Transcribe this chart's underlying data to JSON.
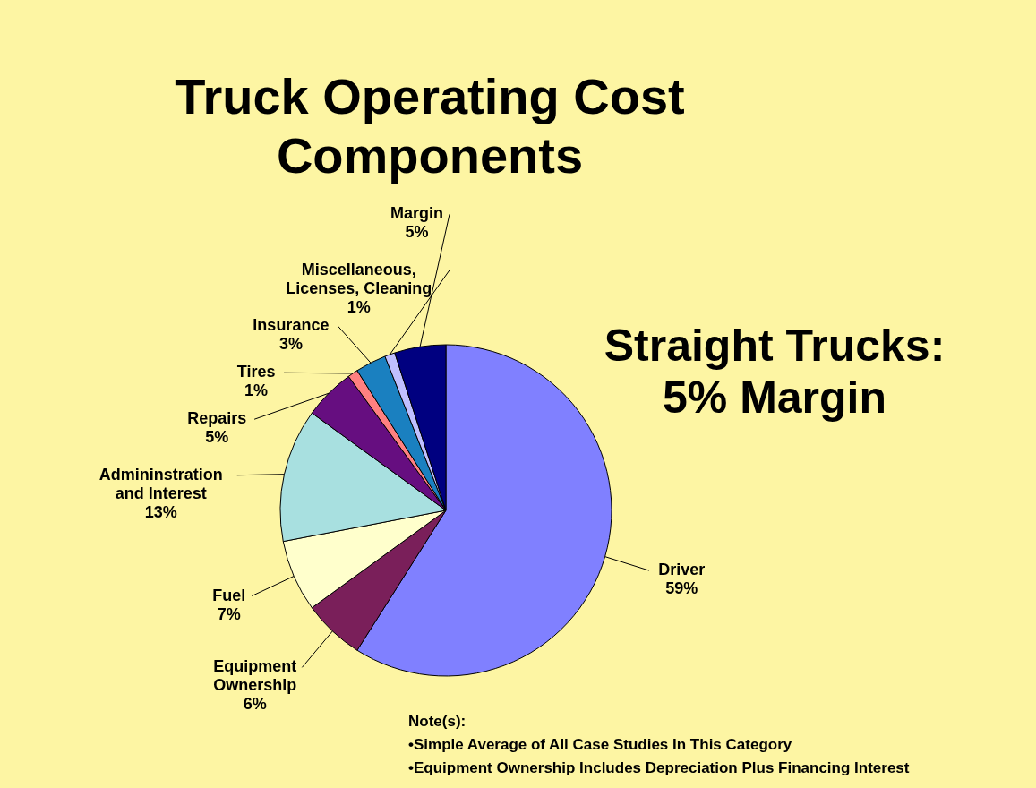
{
  "chart_data": {
    "type": "pie",
    "title": "Truck Operating Cost Components",
    "categories": [
      "Driver",
      "Equipment Ownership",
      "Fuel",
      "Admininstration and Interest",
      "Repairs",
      "Tires",
      "Insurance",
      "Miscellaneous, Licenses, Cleaning",
      "Margin"
    ],
    "values": [
      59,
      6,
      7,
      13,
      5,
      1,
      3,
      1,
      5
    ],
    "value_labels": [
      "59%",
      "6%",
      "7%",
      "13%",
      "5%",
      "1%",
      "3%",
      "1%",
      "5%"
    ],
    "colors": [
      "#8080ff",
      "#7a1f5a",
      "#ffffcc",
      "#a8e0e0",
      "#660e80",
      "#ff8080",
      "#1a80c0",
      "#c0c0ff",
      "#000080"
    ],
    "annotations": [
      "Straight Trucks: 5% Margin",
      "Note(s):",
      "•Simple Average of All Case Studies In This Category",
      "•Equipment Ownership Includes Depreciation Plus Financing Interest"
    ]
  }
}
